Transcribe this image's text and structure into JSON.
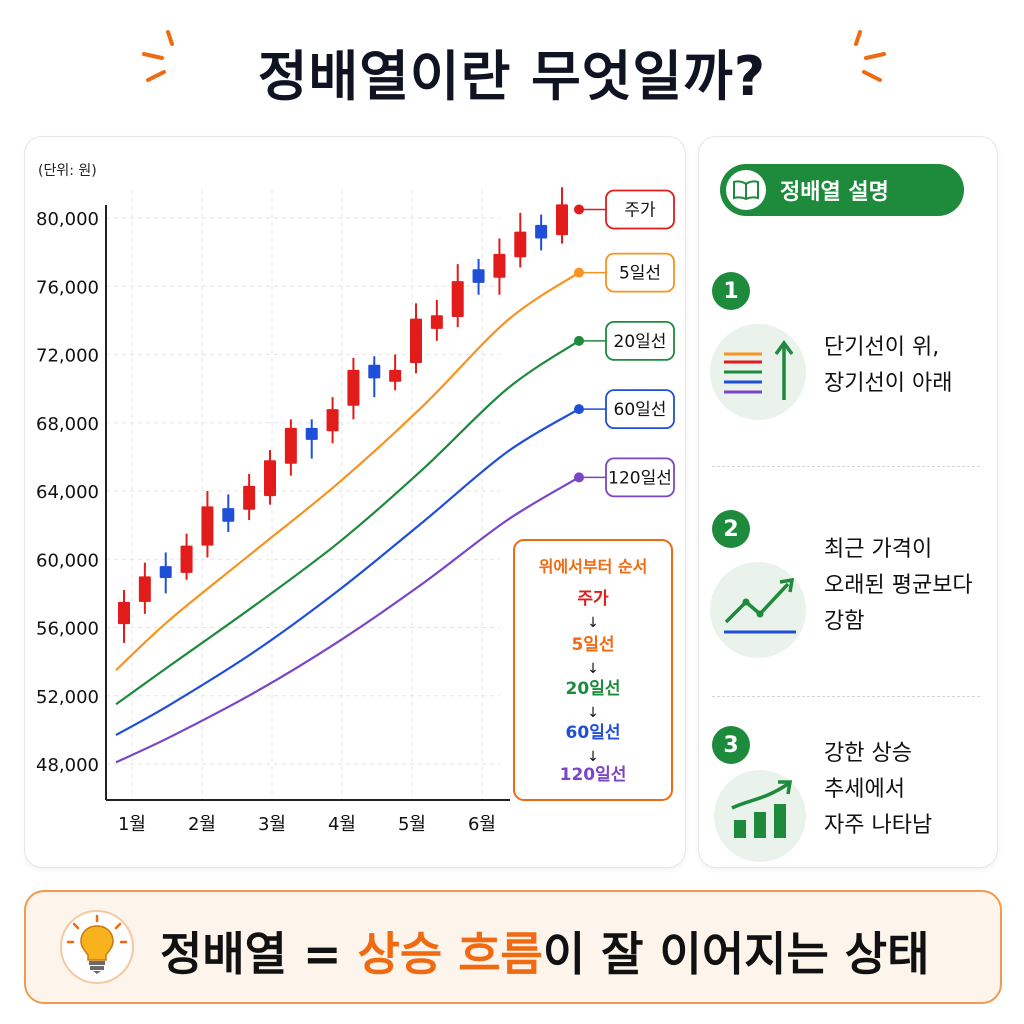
{
  "title": "정배열이란 무엇일까?",
  "unit_label": "(단위: 원)",
  "chart_data": {
    "type": "line",
    "title": "",
    "xlabel": "",
    "ylabel": "",
    "unit": "(단위: 원)",
    "ylim": [
      46000,
      82000
    ],
    "yticks": [
      "80,000",
      "76,000",
      "72,000",
      "68,000",
      "64,000",
      "60,000",
      "56,000",
      "52,000",
      "48,000"
    ],
    "ytick_values": [
      80000,
      76000,
      72000,
      68000,
      64000,
      60000,
      56000,
      52000,
      48000
    ],
    "xticks": [
      "1월",
      "2월",
      "3월",
      "4월",
      "5월",
      "6월"
    ],
    "xtick_values": [
      1,
      2,
      3,
      4,
      5,
      6
    ],
    "xlim": [
      0.7,
      6.45
    ],
    "grid": true,
    "legend_placement": "right-end labels",
    "series": [
      {
        "name": "5일선",
        "color": "#f7931e",
        "x": [
          0.85,
          1.5,
          2.5,
          3.5,
          4.5,
          5.5,
          6.35
        ],
        "values": [
          53500,
          56500,
          60500,
          64500,
          69000,
          74000,
          76800
        ]
      },
      {
        "name": "20일선",
        "color": "#1d8a3c",
        "x": [
          0.85,
          1.5,
          2.5,
          3.5,
          4.5,
          5.5,
          6.35
        ],
        "values": [
          51500,
          53800,
          57300,
          61000,
          65300,
          70000,
          72800
        ]
      },
      {
        "name": "60일선",
        "color": "#1f4fd8",
        "x": [
          0.85,
          1.5,
          2.5,
          3.5,
          4.5,
          5.5,
          6.35
        ],
        "values": [
          49700,
          51500,
          54600,
          58200,
          62200,
          66300,
          68800
        ]
      },
      {
        "name": "120일선",
        "color": "#7b45c6",
        "x": [
          0.85,
          1.5,
          2.5,
          3.5,
          4.5,
          5.5,
          6.35
        ],
        "values": [
          48100,
          49600,
          52200,
          55200,
          58600,
          62300,
          64800
        ]
      }
    ],
    "candles": [
      {
        "x": 0.95,
        "open": 56200,
        "close": 57500,
        "high": 58200,
        "low": 55100,
        "color": "#e21b1b"
      },
      {
        "x": 1.25,
        "open": 57500,
        "close": 59000,
        "high": 59800,
        "low": 56800,
        "color": "#e21b1b"
      },
      {
        "x": 1.55,
        "open": 59600,
        "close": 58900,
        "high": 60400,
        "low": 58000,
        "color": "#1f4fd8"
      },
      {
        "x": 1.85,
        "open": 59200,
        "close": 60800,
        "high": 61500,
        "low": 58800,
        "color": "#e21b1b"
      },
      {
        "x": 2.15,
        "open": 60800,
        "close": 63100,
        "high": 64000,
        "low": 60100,
        "color": "#e21b1b"
      },
      {
        "x": 2.45,
        "open": 63000,
        "close": 62200,
        "high": 63800,
        "low": 61600,
        "color": "#1f4fd8"
      },
      {
        "x": 2.75,
        "open": 62900,
        "close": 64300,
        "high": 65000,
        "low": 62300,
        "color": "#e21b1b"
      },
      {
        "x": 3.05,
        "open": 63700,
        "close": 65800,
        "high": 66400,
        "low": 63200,
        "color": "#e21b1b"
      },
      {
        "x": 3.35,
        "open": 65600,
        "close": 67700,
        "high": 68200,
        "low": 64900,
        "color": "#e21b1b"
      },
      {
        "x": 3.65,
        "open": 67700,
        "close": 67000,
        "high": 68200,
        "low": 65900,
        "color": "#1f4fd8"
      },
      {
        "x": 3.95,
        "open": 67500,
        "close": 68800,
        "high": 69500,
        "low": 66800,
        "color": "#e21b1b"
      },
      {
        "x": 4.25,
        "open": 69000,
        "close": 71100,
        "high": 71800,
        "low": 68200,
        "color": "#e21b1b"
      },
      {
        "x": 4.55,
        "open": 71400,
        "close": 70600,
        "high": 71900,
        "low": 69500,
        "color": "#1f4fd8"
      },
      {
        "x": 4.85,
        "open": 70400,
        "close": 71100,
        "high": 72000,
        "low": 69900,
        "color": "#e21b1b"
      },
      {
        "x": 5.15,
        "open": 71500,
        "close": 74100,
        "high": 75000,
        "low": 70900,
        "color": "#e21b1b"
      },
      {
        "x": 5.45,
        "open": 73500,
        "close": 74300,
        "high": 75200,
        "low": 72800,
        "color": "#e21b1b"
      },
      {
        "x": 5.75,
        "open": 74200,
        "close": 76300,
        "high": 77300,
        "low": 73600,
        "color": "#e21b1b"
      },
      {
        "x": 6.05,
        "open": 77000,
        "close": 76200,
        "high": 77600,
        "low": 75500,
        "color": "#1f4fd8"
      },
      {
        "x": 6.35,
        "open": 76500,
        "close": 77900,
        "high": 78800,
        "low": 75500,
        "color": "#e21b1b"
      },
      {
        "x": 6.65,
        "open": 77700,
        "close": 79200,
        "high": 80300,
        "low": 77100,
        "color": "#e21b1b"
      },
      {
        "x": 6.95,
        "open": 79600,
        "close": 78800,
        "high": 80200,
        "low": 78100,
        "color": "#1f4fd8"
      },
      {
        "x": 7.25,
        "open": 79000,
        "close": 80800,
        "high": 81800,
        "low": 78500,
        "color": "#e21b1b"
      }
    ],
    "end_labels": [
      {
        "text": "주가",
        "color": "#e21b1b",
        "value": 80500
      },
      {
        "text": "5일선",
        "color": "#f7931e",
        "value": 76800
      },
      {
        "text": "20일선",
        "color": "#1d8a3c",
        "value": 72800
      },
      {
        "text": "60일선",
        "color": "#1f4fd8",
        "value": 68800
      },
      {
        "text": "120일선",
        "color": "#7b45c6",
        "value": 64800
      }
    ],
    "order_box": {
      "title": "위에서부터 순서",
      "items": [
        {
          "text": "주가",
          "color": "#e21b1b"
        },
        {
          "text": "5일선",
          "color": "#f06a12"
        },
        {
          "text": "20일선",
          "color": "#1d8a3c"
        },
        {
          "text": "60일선",
          "color": "#1f4fd8"
        },
        {
          "text": "120일선",
          "color": "#7b45c6"
        }
      ],
      "arrow": "↓"
    }
  },
  "side": {
    "badge": "정배열 설명",
    "steps": [
      {
        "num": "1",
        "lines": [
          "단기선이 위,",
          "장기선이 아래"
        ],
        "icon": "ma-lines-up-arrow-icon"
      },
      {
        "num": "2",
        "lines": [
          "최근 가격이",
          "오래된 평균보다",
          "강함"
        ],
        "icon": "rising-trend-icon"
      },
      {
        "num": "3",
        "lines": [
          "강한 상승",
          "추세에서",
          "자주 나타남"
        ],
        "icon": "bar-growth-icon"
      }
    ]
  },
  "bottom": {
    "part1": "정배열 = ",
    "highlight": "상승 흐름",
    "part2": "이 잘 이어지는 상태"
  },
  "colors": {
    "accent_green": "#1d8a3c",
    "accent_orange": "#f06a12",
    "price_red": "#e21b1b",
    "ma5": "#f7931e",
    "ma20": "#1d8a3c",
    "ma60": "#1f4fd8",
    "ma120": "#7b45c6"
  }
}
